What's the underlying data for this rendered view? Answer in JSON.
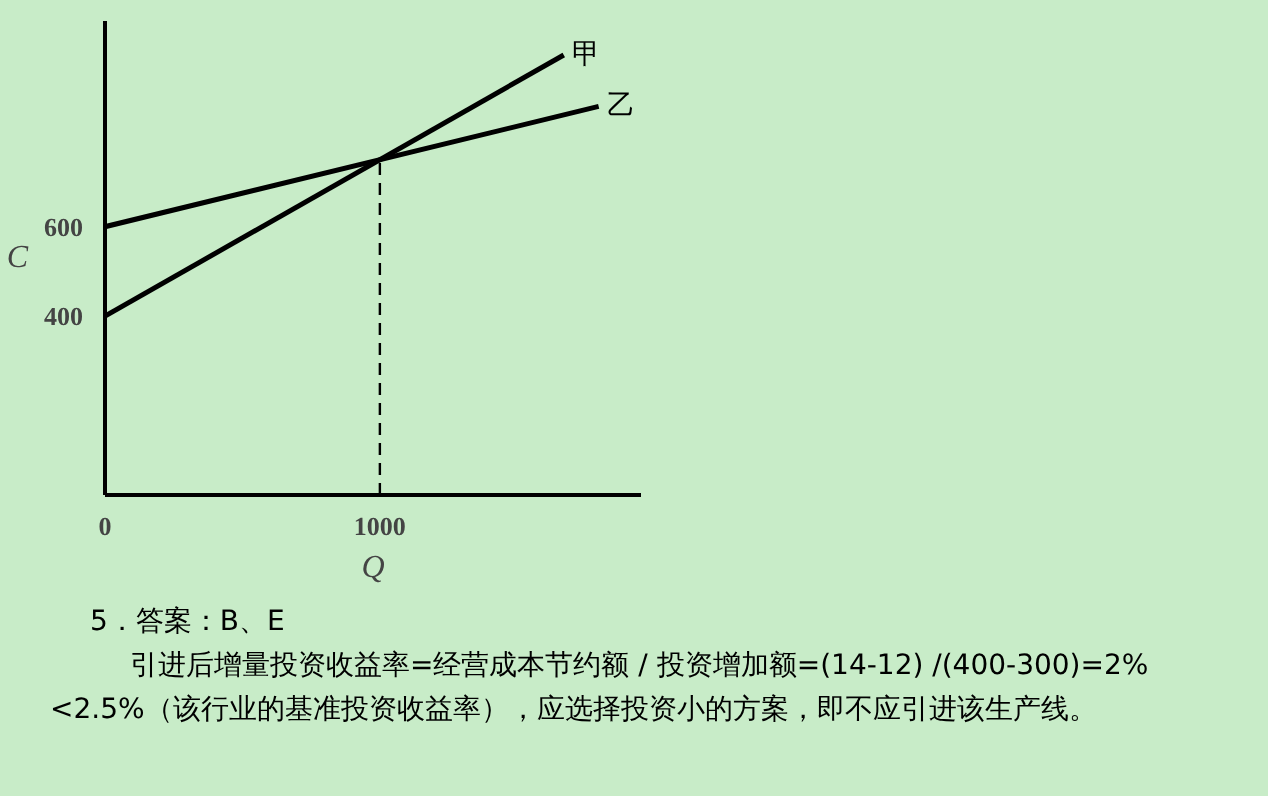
{
  "chart_data": {
    "type": "line",
    "xlabel": "Q",
    "ylabel": "C",
    "ref_lines": [
      {
        "axis": "x",
        "value": 1000,
        "line_style": "dashed",
        "color": "#000000"
      }
    ],
    "series": [
      {
        "name": "甲",
        "color": "#000000",
        "x": [
          0,
          1669
        ],
        "values": [
          400,
          984
        ]
      },
      {
        "name": "乙",
        "color": "#000000",
        "x": [
          0,
          1796
        ],
        "values": [
          600,
          869
        ]
      }
    ],
    "xlim": [
      0,
      1950
    ],
    "ylim": [
      0,
      1060
    ],
    "xticks": [
      0,
      1000
    ],
    "yticks": [
      400,
      600
    ],
    "line_style": "solid",
    "marker": "none",
    "annotations": [
      "5．答案：B、E",
      "引进后增量投资收益率=经营成本节约额 / 投资增加额=(14-12) /(400-300)=2%<2.5%（该行业的基准投资收益率），应选择投资小的方案，即不应引进该生产线。"
    ]
  }
}
